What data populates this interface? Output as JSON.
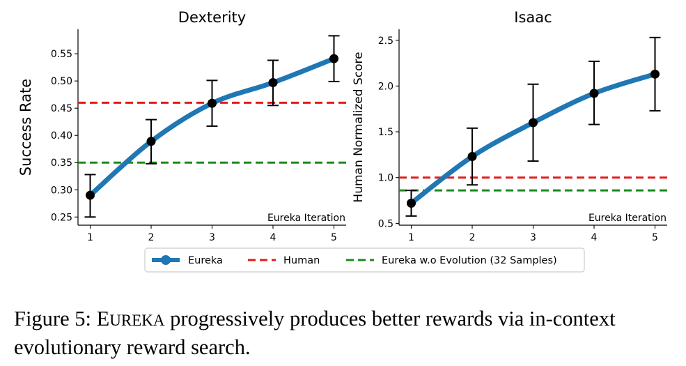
{
  "chart_data": [
    {
      "type": "line",
      "title": "Dexterity",
      "xlabel": "Eureka Iteration",
      "ylabel": "Success Rate",
      "x": [
        1,
        2,
        3,
        4,
        5
      ],
      "xticks": [
        "1",
        "2",
        "3",
        "4",
        "5"
      ],
      "xlim": [
        0.8,
        5.2
      ],
      "ylim": [
        0.235,
        0.595
      ],
      "yticks": [
        "0.25",
        "0.30",
        "0.35",
        "0.40",
        "0.45",
        "0.50",
        "0.55"
      ],
      "series": [
        {
          "name": "Eureka",
          "values": [
            0.29,
            0.389,
            0.459,
            0.497,
            0.541
          ],
          "error_low": [
            0.25,
            0.348,
            0.417,
            0.455,
            0.499
          ],
          "error_high": [
            0.328,
            0.429,
            0.501,
            0.538,
            0.583
          ],
          "color": "#1f77b4"
        }
      ],
      "hlines": [
        {
          "name": "Human",
          "y": 0.46,
          "color": "#e41a1c",
          "style": "dashed"
        },
        {
          "name": "Eureka w.o Evolution (32 Samples)",
          "y": 0.35,
          "color": "#1a8a1a",
          "style": "dashed"
        }
      ],
      "grid": false
    },
    {
      "type": "line",
      "title": "Isaac",
      "xlabel": "Eureka Iteration",
      "ylabel": "Human Normalized Score",
      "x": [
        1,
        2,
        3,
        4,
        5
      ],
      "xticks": [
        "1",
        "2",
        "3",
        "4",
        "5"
      ],
      "xlim": [
        0.8,
        5.2
      ],
      "ylim": [
        0.48,
        2.62
      ],
      "yticks": [
        "0.5",
        "1.0",
        "1.5",
        "2.0",
        "2.5"
      ],
      "series": [
        {
          "name": "Eureka",
          "values": [
            0.72,
            1.23,
            1.6,
            1.92,
            2.13
          ],
          "error_low": [
            0.58,
            0.92,
            1.18,
            1.58,
            1.73
          ],
          "error_high": [
            0.86,
            1.54,
            2.02,
            2.27,
            2.53
          ],
          "color": "#1f77b4"
        }
      ],
      "hlines": [
        {
          "name": "Human",
          "y": 1.0,
          "color": "#e41a1c",
          "style": "dashed"
        },
        {
          "name": "Eureka w.o Evolution (32 Samples)",
          "y": 0.86,
          "color": "#1a8a1a",
          "style": "dashed"
        }
      ],
      "grid": false
    }
  ],
  "legend": {
    "placement": "bottom-center",
    "items": [
      {
        "label": "Eureka",
        "color": "#1f77b4",
        "marker": "line-dot"
      },
      {
        "label": "Human",
        "color": "#e41a1c",
        "marker": "dashed"
      },
      {
        "label": "Eureka w.o Evolution (32 Samples)",
        "color": "#1a8a1a",
        "marker": "dashed"
      }
    ]
  },
  "caption": {
    "prefix": "Figure 5: E",
    "smallcaps": "UREKA",
    "text": " progressively produces better rewards via in-context evolutionary reward search."
  }
}
